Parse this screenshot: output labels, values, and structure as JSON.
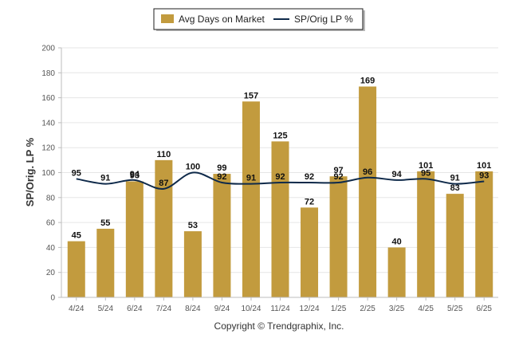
{
  "chart_data": {
    "type": "bar",
    "categories": [
      "4/24",
      "5/24",
      "6/24",
      "7/24",
      "8/24",
      "9/24",
      "10/24",
      "11/24",
      "12/24",
      "1/25",
      "2/25",
      "3/25",
      "4/25",
      "5/25",
      "6/25"
    ],
    "series": [
      {
        "name": "Avg Days on Market",
        "type": "bar",
        "color": "#C29B3E",
        "values": [
          45,
          55,
          93,
          110,
          53,
          99,
          157,
          125,
          72,
          97,
          169,
          40,
          101,
          83,
          101
        ]
      },
      {
        "name": "SP/Orig LP %",
        "type": "line",
        "color": "#0F2A4A",
        "values": [
          95,
          91,
          94,
          87,
          100,
          92,
          91,
          92,
          92,
          92,
          96,
          94,
          95,
          91,
          93
        ]
      }
    ],
    "ylabel": "SP/Orig. LP %",
    "ylim": [
      0,
      200
    ],
    "yticks": [
      0,
      20,
      40,
      60,
      80,
      100,
      120,
      140,
      160,
      180,
      200
    ],
    "grid": true,
    "legend": "top-center"
  },
  "copyright": "Copyright © Trendgraphix, Inc."
}
